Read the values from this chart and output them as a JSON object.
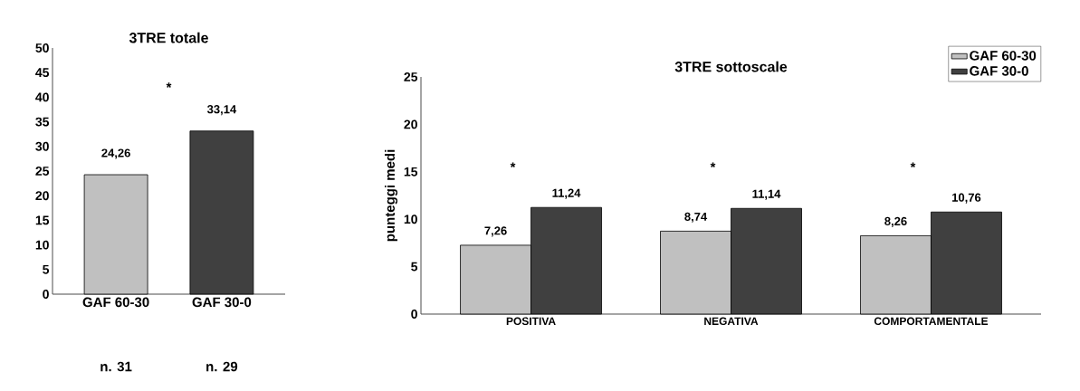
{
  "chart_data": [
    {
      "type": "bar",
      "title": "3TRE totale",
      "categories": [
        "GAF 60-30",
        "GAF 30-0"
      ],
      "values": [
        24.26,
        33.14
      ],
      "colors": [
        "#c0c0c0",
        "#404040"
      ],
      "value_labels": [
        "24,26",
        "33,14"
      ],
      "ylim": [
        0,
        50
      ],
      "yticks": [
        0,
        5,
        10,
        15,
        20,
        25,
        30,
        35,
        40,
        45,
        50
      ],
      "annotations": [
        "*",
        "n. 31",
        "n. 29"
      ]
    },
    {
      "type": "bar",
      "title": "3TRE sottoscale",
      "ylabel": "punteggi medi",
      "categories": [
        "POSITIVA",
        "NEGATIVA",
        "COMPORTAMENTALE"
      ],
      "series": [
        {
          "name": "GAF 60-30",
          "color": "#c0c0c0",
          "values": [
            7.26,
            8.74,
            8.26
          ],
          "value_labels": [
            "7,26",
            "8,74",
            "8,26"
          ]
        },
        {
          "name": "GAF 30-0",
          "color": "#404040",
          "values": [
            11.24,
            11.14,
            10.76
          ],
          "value_labels": [
            "11,24",
            "11,14",
            "10,76"
          ]
        }
      ],
      "ylim": [
        0,
        25
      ],
      "yticks": [
        0,
        5,
        10,
        15,
        20,
        25
      ],
      "legend": "top right",
      "annotations": [
        "*",
        "*",
        "*"
      ]
    }
  ]
}
